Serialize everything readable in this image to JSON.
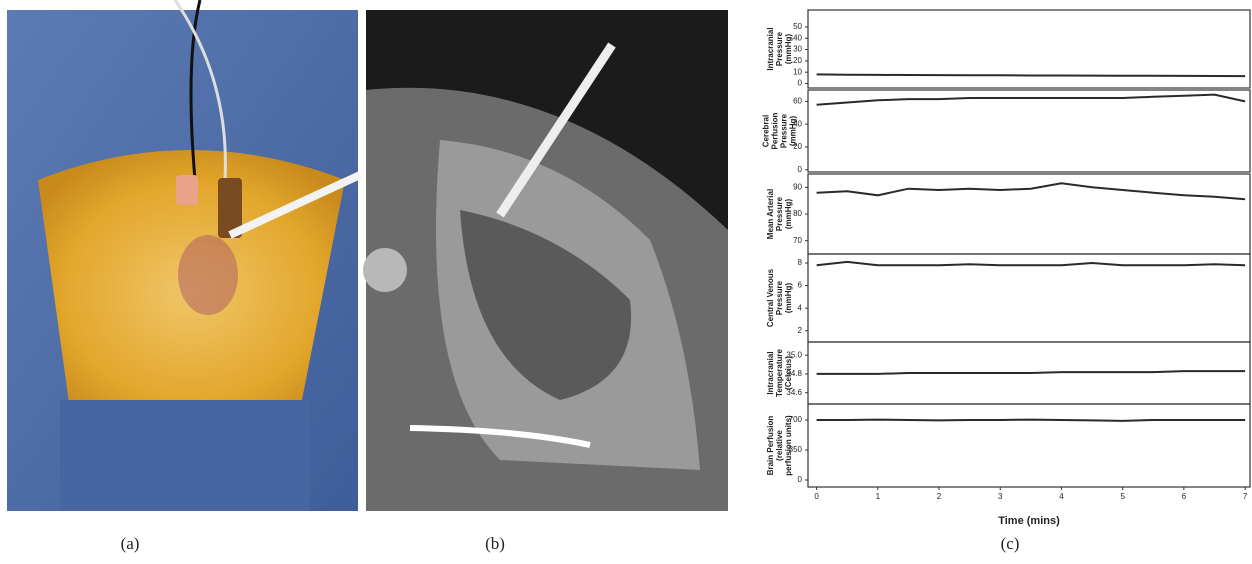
{
  "figure": {
    "labels": [
      "(a)",
      "(b)",
      "(c)"
    ]
  },
  "chart_data": [
    {
      "type": "line",
      "ylabel": [
        "Intracranial",
        "Pressure",
        "(mmHg)"
      ],
      "ylim": [
        -4,
        65
      ],
      "yticks": [
        0,
        10,
        20,
        30,
        40,
        50
      ],
      "xlim": [
        -0.14,
        7.08
      ],
      "x": [
        0,
        0.5,
        1,
        1.5,
        2,
        2.5,
        3,
        3.5,
        4,
        4.5,
        5,
        5.5,
        6,
        6.5,
        7
      ],
      "series": [
        {
          "color": "#2a2a2a",
          "values": [
            8,
            7.8,
            7.6,
            7.5,
            7.4,
            7.3,
            7.2,
            7.1,
            7.1,
            7,
            6.9,
            6.8,
            6.7,
            6.6,
            6.5
          ]
        }
      ]
    },
    {
      "type": "line",
      "ylabel": [
        "Cerebral",
        "Perfusion",
        "Pressure",
        "(mmHg)"
      ],
      "ylim": [
        -2,
        70
      ],
      "yticks": [
        0,
        20,
        40,
        60
      ],
      "xlim": [
        -0.14,
        7.08
      ],
      "x": [
        0,
        0.5,
        1,
        1.5,
        2,
        2.5,
        3,
        3.5,
        4,
        4.5,
        5,
        5.5,
        6,
        6.5,
        7
      ],
      "series": [
        {
          "color": "#2a2a2a",
          "values": [
            57,
            59,
            61,
            62,
            62,
            63,
            63,
            63,
            63,
            63,
            63,
            64,
            65,
            66,
            60
          ]
        }
      ]
    },
    {
      "type": "line",
      "ylabel": [
        "Mean Arterial",
        "Pressure",
        "(mmHg)"
      ],
      "ylim": [
        65,
        95
      ],
      "yticks": [
        70,
        80,
        90
      ],
      "xlim": [
        -0.14,
        7.08
      ],
      "x": [
        0,
        0.5,
        1,
        1.5,
        2,
        2.5,
        3,
        3.5,
        4,
        4.5,
        5,
        5.5,
        6,
        6.5,
        7
      ],
      "series": [
        {
          "color": "#2a2a2a",
          "values": [
            88,
            88.5,
            87,
            89.5,
            89,
            89.5,
            89,
            89.5,
            91.5,
            90,
            89,
            88,
            87,
            86.5,
            85.5
          ]
        }
      ]
    },
    {
      "type": "line",
      "ylabel": [
        "Central Venous",
        "Pressure",
        "(mmHg)"
      ],
      "ylim": [
        1,
        8.8
      ],
      "yticks": [
        2,
        4,
        6,
        8
      ],
      "xlim": [
        -0.14,
        7.08
      ],
      "x": [
        0,
        0.5,
        1,
        1.5,
        2,
        2.5,
        3,
        3.5,
        4,
        4.5,
        5,
        5.5,
        6,
        6.5,
        7
      ],
      "series": [
        {
          "color": "#2a2a2a",
          "values": [
            7.8,
            8.1,
            7.8,
            7.8,
            7.8,
            7.9,
            7.8,
            7.8,
            7.8,
            8,
            7.8,
            7.8,
            7.8,
            7.9,
            7.8
          ]
        }
      ]
    },
    {
      "type": "line",
      "ylabel": [
        "Intracranial",
        "Temperature",
        "(Celcius)"
      ],
      "ylim": [
        34.48,
        35.14
      ],
      "yticks": [
        34.6,
        34.8,
        {
          "value": 35,
          "label": "35.0"
        }
      ],
      "xlim": [
        -0.14,
        7.08
      ],
      "x": [
        0,
        0.5,
        1,
        1.5,
        2,
        2.5,
        3,
        3.5,
        4,
        4.5,
        5,
        5.5,
        6,
        6.5,
        7
      ],
      "series": [
        {
          "color": "#2a2a2a",
          "values": [
            34.8,
            34.8,
            34.8,
            34.81,
            34.81,
            34.81,
            34.81,
            34.81,
            34.82,
            34.82,
            34.82,
            34.82,
            34.83,
            34.83,
            34.83
          ]
        }
      ]
    },
    {
      "type": "line",
      "ylabel": [
        "Brain Perfusion",
        "(relative",
        "perfusion units)"
      ],
      "ylim": [
        -82,
        887
      ],
      "yticks": [
        0,
        350,
        700
      ],
      "xlim": [
        -0.14,
        7.08
      ],
      "xticks": [
        0,
        1,
        2,
        3,
        4,
        5,
        6,
        7
      ],
      "xlabel": "Time (mins)",
      "x": [
        0,
        0.5,
        1,
        1.5,
        2,
        2.5,
        3,
        3.5,
        4,
        4.5,
        5,
        5.5,
        6,
        6.5,
        7
      ],
      "series": [
        {
          "color": "#2a2a2a",
          "values": [
            700,
            700,
            705,
            700,
            695,
            700,
            700,
            705,
            700,
            695,
            690,
            700,
            700,
            700,
            700
          ]
        }
      ]
    }
  ]
}
